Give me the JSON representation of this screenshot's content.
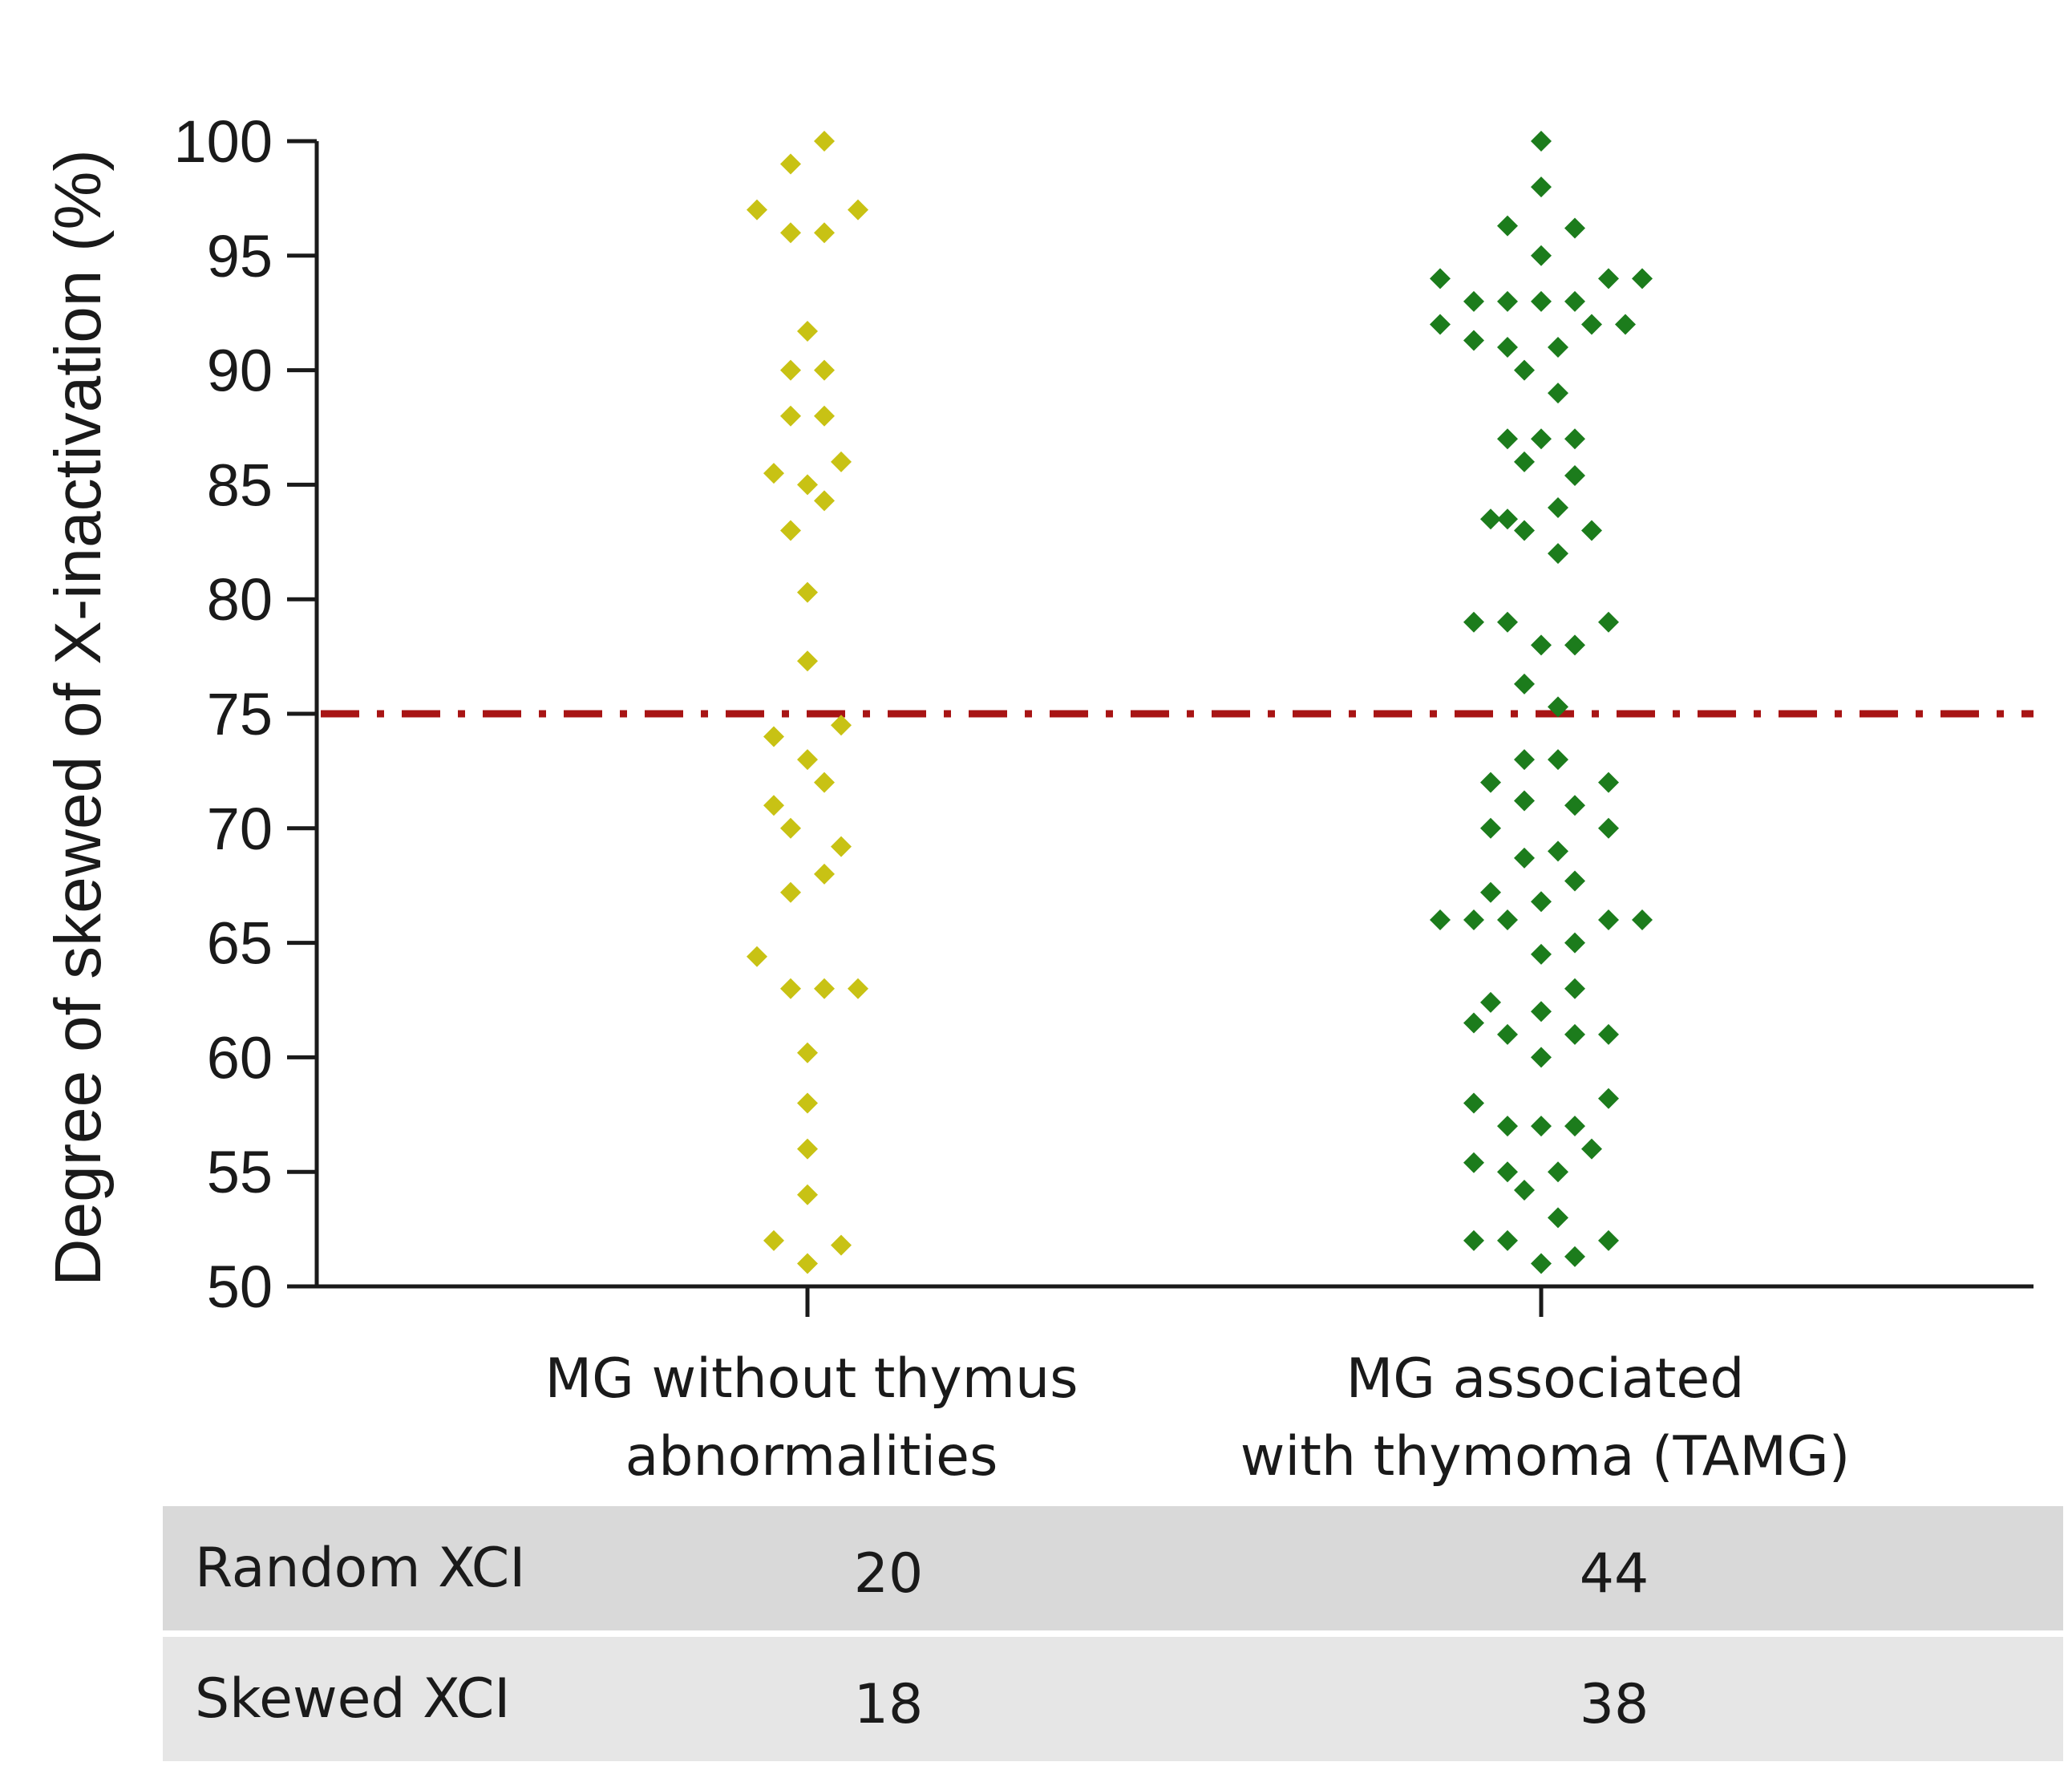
{
  "chart_data": {
    "type": "scatter",
    "subtype": "dot-strip-plot",
    "ylabel": "Degree of skewed of X-inactivation (%)",
    "ylim": [
      50,
      100
    ],
    "yticks": [
      100,
      95,
      90,
      85,
      80,
      75,
      70,
      65,
      60,
      55,
      50
    ],
    "categories": [
      "MG without thymus\nabnormalities",
      "MG associated\nwith thymoma (TAMG)"
    ],
    "threshold": {
      "value": 75,
      "color": "#a81414",
      "style": "dash-dot"
    },
    "grid": false,
    "series": [
      {
        "name": "MG without thymus abnormalities",
        "color": "#c8c214",
        "marker": "diamond",
        "points": [
          {
            "y": 100,
            "o": 0.5
          },
          {
            "y": 99,
            "o": -0.5
          },
          {
            "y": 97,
            "o": -1.5
          },
          {
            "y": 97,
            "o": 1.5
          },
          {
            "y": 96,
            "o": -0.5
          },
          {
            "y": 96,
            "o": 0.5
          },
          {
            "y": 91.7,
            "o": 0
          },
          {
            "y": 90,
            "o": -0.5
          },
          {
            "y": 90,
            "o": 0.5
          },
          {
            "y": 88,
            "o": -0.5
          },
          {
            "y": 88,
            "o": 0.5
          },
          {
            "y": 86,
            "o": 1
          },
          {
            "y": 85.5,
            "o": -1
          },
          {
            "y": 85,
            "o": 0
          },
          {
            "y": 84.3,
            "o": 0.5
          },
          {
            "y": 83,
            "o": -0.5
          },
          {
            "y": 80.3,
            "o": 0
          },
          {
            "y": 77.3,
            "o": 0
          },
          {
            "y": 74.5,
            "o": 1
          },
          {
            "y": 74,
            "o": -1
          },
          {
            "y": 73,
            "o": 0
          },
          {
            "y": 72,
            "o": 0.5
          },
          {
            "y": 71,
            "o": -1
          },
          {
            "y": 70,
            "o": -0.5
          },
          {
            "y": 69.2,
            "o": 1
          },
          {
            "y": 68,
            "o": 0.5
          },
          {
            "y": 67.2,
            "o": -0.5
          },
          {
            "y": 64.4,
            "o": -1.5
          },
          {
            "y": 63,
            "o": -0.5
          },
          {
            "y": 63,
            "o": 0.5
          },
          {
            "y": 63,
            "o": 1.5
          },
          {
            "y": 60.2,
            "o": 0
          },
          {
            "y": 58,
            "o": 0
          },
          {
            "y": 56,
            "o": 0
          },
          {
            "y": 54,
            "o": 0
          },
          {
            "y": 52,
            "o": -1
          },
          {
            "y": 51.8,
            "o": 1
          },
          {
            "y": 51,
            "o": 0
          }
        ]
      },
      {
        "name": "MG associated with thymoma (TAMG)",
        "color": "#1c7c1c",
        "marker": "diamond",
        "points": [
          {
            "y": 100,
            "o": 0
          },
          {
            "y": 98,
            "o": 0
          },
          {
            "y": 96.3,
            "o": -1
          },
          {
            "y": 96.2,
            "o": 1
          },
          {
            "y": 95,
            "o": 0
          },
          {
            "y": 94,
            "o": -3
          },
          {
            "y": 94,
            "o": 2
          },
          {
            "y": 94,
            "o": 3
          },
          {
            "y": 93,
            "o": -2
          },
          {
            "y": 93,
            "o": -1
          },
          {
            "y": 93,
            "o": 0
          },
          {
            "y": 93,
            "o": 1
          },
          {
            "y": 92,
            "o": -3
          },
          {
            "y": 92,
            "o": 1.5
          },
          {
            "y": 92,
            "o": 2.5
          },
          {
            "y": 91.3,
            "o": -2
          },
          {
            "y": 91,
            "o": -1
          },
          {
            "y": 91,
            "o": 0.5
          },
          {
            "y": 90,
            "o": -0.5
          },
          {
            "y": 89,
            "o": 0.5
          },
          {
            "y": 87,
            "o": -1
          },
          {
            "y": 87,
            "o": 0
          },
          {
            "y": 87,
            "o": 1
          },
          {
            "y": 86,
            "o": -0.5
          },
          {
            "y": 85.4,
            "o": 1
          },
          {
            "y": 84,
            "o": 0.5
          },
          {
            "y": 83.5,
            "o": -1.5
          },
          {
            "y": 83.5,
            "o": -1
          },
          {
            "y": 83,
            "o": -0.5
          },
          {
            "y": 83,
            "o": 1.5
          },
          {
            "y": 82,
            "o": 0.5
          },
          {
            "y": 79,
            "o": -2
          },
          {
            "y": 79,
            "o": -1
          },
          {
            "y": 79,
            "o": 2
          },
          {
            "y": 78,
            "o": 0
          },
          {
            "y": 78,
            "o": 1
          },
          {
            "y": 76.3,
            "o": -0.5
          },
          {
            "y": 75.3,
            "o": 0.5
          },
          {
            "y": 73,
            "o": -0.5
          },
          {
            "y": 73,
            "o": 0.5
          },
          {
            "y": 72,
            "o": -1.5
          },
          {
            "y": 72,
            "o": 2
          },
          {
            "y": 71.2,
            "o": -0.5
          },
          {
            "y": 71,
            "o": 1
          },
          {
            "y": 70,
            "o": -1.5
          },
          {
            "y": 70,
            "o": 2
          },
          {
            "y": 69,
            "o": 0.5
          },
          {
            "y": 68.7,
            "o": -0.5
          },
          {
            "y": 67.7,
            "o": 1
          },
          {
            "y": 67.2,
            "o": -1.5
          },
          {
            "y": 66.8,
            "o": 0
          },
          {
            "y": 66,
            "o": -3
          },
          {
            "y": 66,
            "o": -2
          },
          {
            "y": 66,
            "o": -1
          },
          {
            "y": 66,
            "o": 2
          },
          {
            "y": 66,
            "o": 3
          },
          {
            "y": 65,
            "o": 1
          },
          {
            "y": 64.5,
            "o": 0
          },
          {
            "y": 63,
            "o": 1
          },
          {
            "y": 62.4,
            "o": -1.5
          },
          {
            "y": 62,
            "o": 0
          },
          {
            "y": 61.5,
            "o": -2
          },
          {
            "y": 61,
            "o": -1
          },
          {
            "y": 61,
            "o": 1
          },
          {
            "y": 61,
            "o": 2
          },
          {
            "y": 60,
            "o": 0
          },
          {
            "y": 58.2,
            "o": 2
          },
          {
            "y": 58,
            "o": -2
          },
          {
            "y": 57,
            "o": -1
          },
          {
            "y": 57,
            "o": 0
          },
          {
            "y": 57,
            "o": 1
          },
          {
            "y": 56,
            "o": 1.5
          },
          {
            "y": 55.4,
            "o": -2
          },
          {
            "y": 55,
            "o": -1
          },
          {
            "y": 55,
            "o": 0.5
          },
          {
            "y": 54.2,
            "o": -0.5
          },
          {
            "y": 53,
            "o": 0.5
          },
          {
            "y": 52,
            "o": -2
          },
          {
            "y": 52,
            "o": -1
          },
          {
            "y": 52,
            "o": 2
          },
          {
            "y": 51.3,
            "o": 1
          },
          {
            "y": 51,
            "o": 0
          }
        ]
      }
    ]
  },
  "table": {
    "rows": [
      {
        "label": "Random XCI",
        "values": [
          "20",
          "44"
        ],
        "background": "#d9d9d9"
      },
      {
        "label": "Skewed XCI",
        "values": [
          "18",
          "38"
        ],
        "background": "#e6e6e6"
      }
    ]
  }
}
